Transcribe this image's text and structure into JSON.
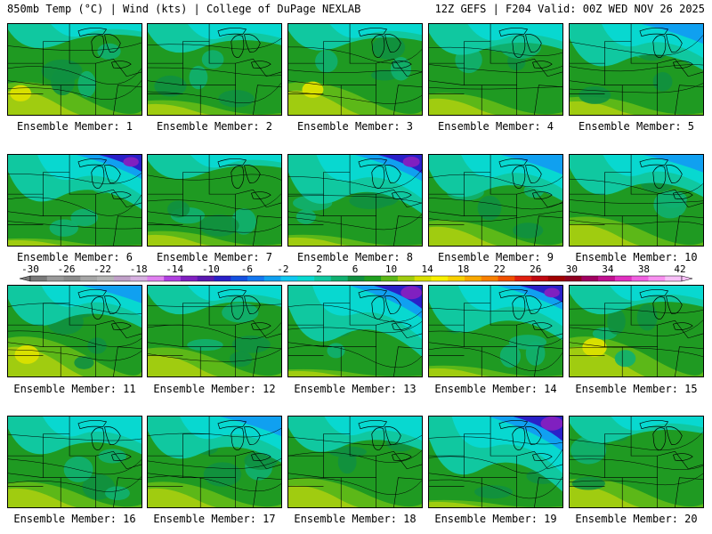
{
  "header": {
    "left": "850mb Temp (°C) | Wind (kts) | College of DuPage NEXLAB",
    "right": "12Z GEFS | F204 Valid: 00Z WED NOV 26 2025"
  },
  "panels": [
    {
      "label": "Ensemble Member: 1",
      "cold": 0.05,
      "warm": 0.45
    },
    {
      "label": "Ensemble Member: 2",
      "cold": 0.15,
      "warm": 0.2
    },
    {
      "label": "Ensemble Member: 3",
      "cold": 0.1,
      "warm": 0.45
    },
    {
      "label": "Ensemble Member: 4",
      "cold": 0.2,
      "warm": 0.3
    },
    {
      "label": "Ensemble Member: 5",
      "cold": 0.45,
      "warm": 0.25
    },
    {
      "label": "Ensemble Member: 6",
      "cold": 0.55,
      "warm": 0.1
    },
    {
      "label": "Ensemble Member: 7",
      "cold": 0.05,
      "warm": 0.2
    },
    {
      "label": "Ensemble Member: 8",
      "cold": 0.6,
      "warm": 0.15
    },
    {
      "label": "Ensemble Member: 9",
      "cold": 0.45,
      "warm": 0.35
    },
    {
      "label": "Ensemble Member: 10",
      "cold": 0.4,
      "warm": 0.4
    },
    {
      "label": "Ensemble Member: 11",
      "cold": 0.4,
      "warm": 0.55
    },
    {
      "label": "Ensemble Member: 12",
      "cold": 0.15,
      "warm": 0.4
    },
    {
      "label": "Ensemble Member: 13",
      "cold": 0.75,
      "warm": 0.1
    },
    {
      "label": "Ensemble Member: 14",
      "cold": 0.55,
      "warm": 0.15
    },
    {
      "label": "Ensemble Member: 15",
      "cold": 0.15,
      "warm": 0.55
    },
    {
      "label": "Ensemble Member: 16",
      "cold": 0.35,
      "warm": 0.35
    },
    {
      "label": "Ensemble Member: 17",
      "cold": 0.45,
      "warm": 0.35
    },
    {
      "label": "Ensemble Member: 18",
      "cold": 0.3,
      "warm": 0.4
    },
    {
      "label": "Ensemble Member: 19",
      "cold": 0.8,
      "warm": 0.1
    },
    {
      "label": "Ensemble Member: 20",
      "cold": 0.1,
      "warm": 0.4
    }
  ],
  "colorbar": {
    "ticks": [
      "-30",
      "-26",
      "-22",
      "-18",
      "-14",
      "-10",
      "-6",
      "-2",
      "2",
      "6",
      "10",
      "14",
      "18",
      "22",
      "26",
      "30",
      "34",
      "38",
      "42"
    ],
    "colors": [
      "#7a7a7a",
      "#9a9a9a",
      "#8c8c8c",
      "#a6a6a6",
      "#b4b4b4",
      "#c0a0c8",
      "#d6b0e0",
      "#e080f0",
      "#b040e0",
      "#8020c0",
      "#5a18b0",
      "#2a20c8",
      "#1450e0",
      "#1478f0",
      "#10a0f0",
      "#10c8f0",
      "#08d8d0",
      "#10c8a0",
      "#10b070",
      "#109040",
      "#20a020",
      "#5cb818",
      "#a0cc10",
      "#d8e000",
      "#f8f000",
      "#f8d000",
      "#f8a800",
      "#f88000",
      "#f05000",
      "#e02010",
      "#c00810",
      "#a00000",
      "#900020",
      "#a00060",
      "#c01090",
      "#e030c0",
      "#f060e0",
      "#f890f0",
      "#f8c0f8"
    ]
  }
}
